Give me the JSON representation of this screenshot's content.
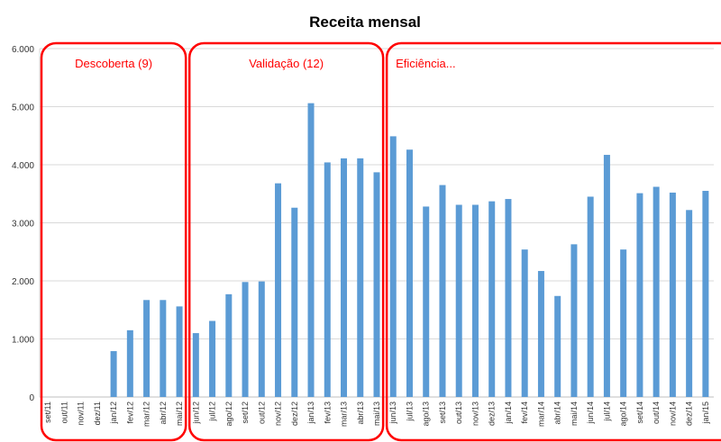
{
  "chart_data": {
    "type": "bar",
    "title": "Receita mensal",
    "xlabel": "",
    "ylabel": "",
    "ylim": [
      0,
      6000
    ],
    "yticks": [
      0,
      1000,
      2000,
      3000,
      4000,
      5000,
      6000
    ],
    "ytick_labels": [
      "0",
      "1.000",
      "2.000",
      "3.000",
      "4.000",
      "5.000",
      "6.000"
    ],
    "grid": true,
    "categories": [
      "set/11",
      "out/11",
      "nov/11",
      "dez/11",
      "jan/12",
      "fev/12",
      "mar/12",
      "abr/12",
      "mai/12",
      "jun/12",
      "jul/12",
      "ago/12",
      "set/12",
      "out/12",
      "nov/12",
      "dez/12",
      "jan/13",
      "fev/13",
      "mar/13",
      "abr/13",
      "mai/13",
      "jun/13",
      "jul/13",
      "ago/13",
      "set/13",
      "out/13",
      "nov/13",
      "dez/13",
      "jan/14",
      "fev/14",
      "mar/14",
      "abr/14",
      "mai/14",
      "jun/14",
      "jul/14",
      "ago/14",
      "set/14",
      "out/14",
      "nov/14",
      "dez/14",
      "jan/15"
    ],
    "x_labels_shown": [
      "set/11",
      "",
      "out/11",
      "",
      "nov/11",
      "",
      "dez/11",
      "",
      "jan/12",
      "",
      "fev/12",
      "",
      "mar/12",
      "",
      "abr/12",
      "",
      "mai/12",
      "",
      "jun/12",
      "",
      "jul/12",
      "",
      "ago/12",
      "",
      "set/12",
      "",
      "out/12",
      "",
      "nov/12",
      "",
      "dez/12",
      "",
      "jan/13",
      "",
      "fev/13",
      "",
      "mar/13",
      "",
      "abr/13",
      "",
      "mai/13"
    ],
    "x_labels_shown_note": "",
    "values": [
      0,
      0,
      0,
      0,
      790,
      1150,
      1670,
      1670,
      1560,
      1100,
      1310,
      1770,
      1980,
      1990,
      3680,
      3260,
      5060,
      4040,
      4110,
      4110,
      3870,
      4490,
      4260,
      3280,
      3650,
      3310,
      3310,
      3370,
      3410,
      2540,
      2170,
      1740,
      2630,
      3450,
      4170,
      2540,
      3510,
      3620,
      3520,
      3220,
      3550
    ],
    "color": "#5B9BD5",
    "annotations": [
      {
        "label": "Descoberta (9)",
        "from": "set/11",
        "to": "mai/12"
      },
      {
        "label": "Validação (12)",
        "from": "jun/12",
        "to": "mai/13"
      },
      {
        "label": "Eficiência...",
        "from": "jun/13",
        "to": "jan/15"
      }
    ],
    "annotation_color": "#FF0000"
  }
}
